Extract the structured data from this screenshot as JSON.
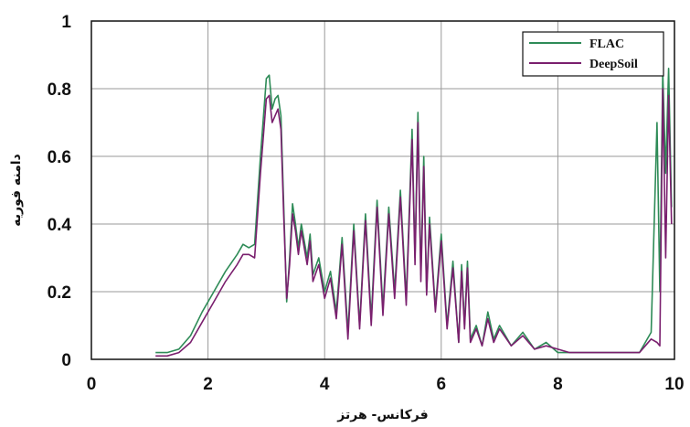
{
  "chart_data": {
    "type": "line",
    "xlabel": "فرکانس- هرتز",
    "ylabel": "دامنه فوریه",
    "xlim": [
      0,
      10
    ],
    "ylim": [
      0,
      1
    ],
    "x_ticks": [
      "0",
      "2",
      "4",
      "6",
      "8",
      "10"
    ],
    "y_ticks": [
      "0",
      "0.2",
      "0.4",
      "0.6",
      "0.8",
      "1"
    ],
    "grid": true,
    "legend_position": "top-right",
    "series": [
      {
        "name": "FLAC",
        "color": "#2e8b57",
        "x": [
          1.1,
          1.3,
          1.5,
          1.7,
          1.9,
          2.1,
          2.3,
          2.5,
          2.6,
          2.7,
          2.8,
          2.9,
          3.0,
          3.05,
          3.1,
          3.15,
          3.2,
          3.25,
          3.3,
          3.35,
          3.4,
          3.45,
          3.5,
          3.55,
          3.6,
          3.65,
          3.7,
          3.75,
          3.8,
          3.9,
          4.0,
          4.1,
          4.2,
          4.3,
          4.4,
          4.5,
          4.6,
          4.7,
          4.8,
          4.9,
          5.0,
          5.1,
          5.2,
          5.3,
          5.4,
          5.5,
          5.55,
          5.6,
          5.65,
          5.7,
          5.75,
          5.8,
          5.9,
          6.0,
          6.1,
          6.2,
          6.3,
          6.35,
          6.4,
          6.45,
          6.5,
          6.6,
          6.7,
          6.8,
          6.9,
          7.0,
          7.2,
          7.4,
          7.6,
          7.8,
          8.0,
          8.2,
          8.4,
          8.6,
          8.8,
          9.0,
          9.2,
          9.4,
          9.5,
          9.6,
          9.7,
          9.75,
          9.8,
          9.85,
          9.9,
          9.95
        ],
        "values": [
          0.02,
          0.02,
          0.03,
          0.07,
          0.14,
          0.2,
          0.26,
          0.31,
          0.34,
          0.33,
          0.34,
          0.6,
          0.83,
          0.84,
          0.74,
          0.77,
          0.78,
          0.72,
          0.45,
          0.17,
          0.3,
          0.46,
          0.4,
          0.33,
          0.4,
          0.35,
          0.3,
          0.37,
          0.25,
          0.3,
          0.2,
          0.26,
          0.14,
          0.36,
          0.08,
          0.4,
          0.1,
          0.43,
          0.12,
          0.47,
          0.15,
          0.45,
          0.2,
          0.5,
          0.18,
          0.68,
          0.3,
          0.73,
          0.25,
          0.6,
          0.2,
          0.42,
          0.15,
          0.37,
          0.1,
          0.29,
          0.05,
          0.28,
          0.1,
          0.29,
          0.06,
          0.1,
          0.04,
          0.14,
          0.06,
          0.1,
          0.04,
          0.08,
          0.03,
          0.05,
          0.02,
          0.02,
          0.02,
          0.02,
          0.02,
          0.02,
          0.02,
          0.02,
          0.05,
          0.08,
          0.7,
          0.2,
          0.85,
          0.55,
          0.86,
          0.45
        ]
      },
      {
        "name": "DeepSoil",
        "color": "#7a1f6e",
        "x": [
          1.1,
          1.3,
          1.5,
          1.7,
          1.9,
          2.1,
          2.3,
          2.5,
          2.6,
          2.7,
          2.8,
          2.9,
          3.0,
          3.05,
          3.1,
          3.15,
          3.2,
          3.25,
          3.3,
          3.35,
          3.4,
          3.45,
          3.5,
          3.55,
          3.6,
          3.65,
          3.7,
          3.75,
          3.8,
          3.9,
          4.0,
          4.1,
          4.2,
          4.3,
          4.4,
          4.5,
          4.6,
          4.7,
          4.8,
          4.9,
          5.0,
          5.1,
          5.2,
          5.3,
          5.4,
          5.5,
          5.55,
          5.6,
          5.65,
          5.7,
          5.75,
          5.8,
          5.9,
          6.0,
          6.1,
          6.2,
          6.3,
          6.35,
          6.4,
          6.45,
          6.5,
          6.6,
          6.7,
          6.8,
          6.9,
          7.0,
          7.2,
          7.4,
          7.6,
          7.8,
          8.0,
          8.2,
          8.4,
          8.6,
          8.8,
          9.0,
          9.2,
          9.4,
          9.5,
          9.6,
          9.7,
          9.75,
          9.8,
          9.85,
          9.9,
          9.95
        ],
        "values": [
          0.01,
          0.01,
          0.02,
          0.05,
          0.11,
          0.17,
          0.23,
          0.28,
          0.31,
          0.31,
          0.3,
          0.55,
          0.77,
          0.78,
          0.7,
          0.72,
          0.74,
          0.68,
          0.42,
          0.18,
          0.28,
          0.43,
          0.38,
          0.31,
          0.38,
          0.33,
          0.28,
          0.35,
          0.23,
          0.28,
          0.18,
          0.24,
          0.12,
          0.34,
          0.06,
          0.38,
          0.09,
          0.41,
          0.1,
          0.45,
          0.13,
          0.43,
          0.18,
          0.48,
          0.16,
          0.65,
          0.28,
          0.7,
          0.23,
          0.57,
          0.19,
          0.4,
          0.14,
          0.35,
          0.09,
          0.27,
          0.05,
          0.26,
          0.09,
          0.27,
          0.05,
          0.09,
          0.04,
          0.12,
          0.05,
          0.09,
          0.04,
          0.07,
          0.03,
          0.04,
          0.03,
          0.02,
          0.02,
          0.02,
          0.02,
          0.02,
          0.02,
          0.02,
          0.04,
          0.06,
          0.05,
          0.04,
          0.8,
          0.3,
          0.78,
          0.4
        ]
      }
    ]
  }
}
